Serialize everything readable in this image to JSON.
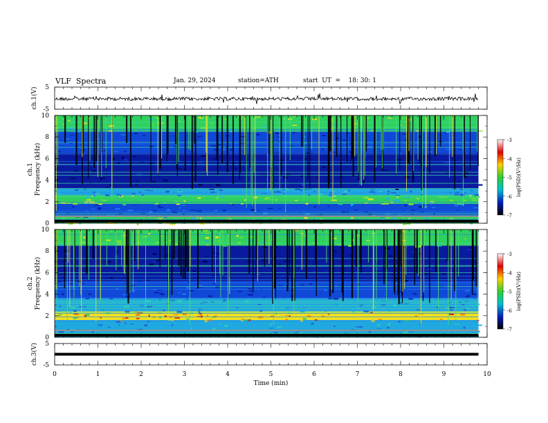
{
  "header": {
    "title": "VLF  Spectra",
    "date": "Jan. 29, 2024",
    "station": "station=ATH",
    "start": "start  UT  =    18: 30: 1"
  },
  "colorbar": {
    "label": "log(PSD)(V²/Hz)",
    "ticks": [
      "-3",
      "-4",
      "-5",
      "-6",
      "-7"
    ],
    "colors": [
      "#ffffff",
      "#e00000",
      "#ffd000",
      "#30d030",
      "#00c0d0",
      "#0020c0",
      "#000000"
    ]
  },
  "chart_data": [
    {
      "type": "line",
      "name": "ch1-waveform",
      "ylabel": "ch.1(V)",
      "xlim": [
        0,
        10
      ],
      "ylim": [
        -5,
        5
      ],
      "yticks": [
        "5",
        "-5"
      ],
      "data_end_min": 9.8
    },
    {
      "type": "heatmap",
      "name": "ch1-spectrogram",
      "ylabel": "ch.1\nFrequency  (kHz)",
      "xlim": [
        0,
        10
      ],
      "ylim": [
        0,
        10
      ],
      "yticks": [
        "0",
        "2",
        "4",
        "6",
        "8",
        "10"
      ],
      "data_end_min": 9.8,
      "bands_khz": [
        {
          "from": 0,
          "to": 0.6,
          "level": "green"
        },
        {
          "from": 0.6,
          "to": 1.8,
          "level": "blue"
        },
        {
          "from": 1.8,
          "to": 2.6,
          "level": "green"
        },
        {
          "from": 2.6,
          "to": 3.2,
          "level": "cyan"
        },
        {
          "from": 3.2,
          "to": 6.5,
          "level": "darkblue"
        },
        {
          "from": 6.5,
          "to": 8.5,
          "level": "blue"
        },
        {
          "from": 8.5,
          "to": 10,
          "level": "green"
        }
      ]
    },
    {
      "type": "heatmap",
      "name": "ch2-spectrogram",
      "ylabel": "ch.2\nFrequency  (kHz)",
      "xlim": [
        0,
        10
      ],
      "ylim": [
        0,
        10
      ],
      "yticks": [
        "0",
        "2",
        "4",
        "6",
        "8",
        "10"
      ],
      "data_end_min": 9.8,
      "bands_khz": [
        {
          "from": 0,
          "to": 1.6,
          "level": "cyan"
        },
        {
          "from": 1.6,
          "to": 2.4,
          "level": "yellow"
        },
        {
          "from": 2.4,
          "to": 3.6,
          "level": "cyan"
        },
        {
          "from": 3.6,
          "to": 5.2,
          "level": "blue"
        },
        {
          "from": 5.2,
          "to": 8.5,
          "level": "darkblue"
        },
        {
          "from": 8.5,
          "to": 10,
          "level": "green"
        }
      ]
    },
    {
      "type": "line",
      "name": "ch3-waveform",
      "ylabel": "ch.3(V)",
      "xlabel": "Time  (min)",
      "xlim": [
        0,
        10
      ],
      "ylim": [
        -5,
        5
      ],
      "yticks": [
        "5",
        "-5"
      ],
      "xticks": [
        "0",
        "1",
        "2",
        "3",
        "4",
        "5",
        "6",
        "7",
        "8",
        "9",
        "10"
      ],
      "data_end_min": 9.8,
      "constant_value": 0
    }
  ]
}
